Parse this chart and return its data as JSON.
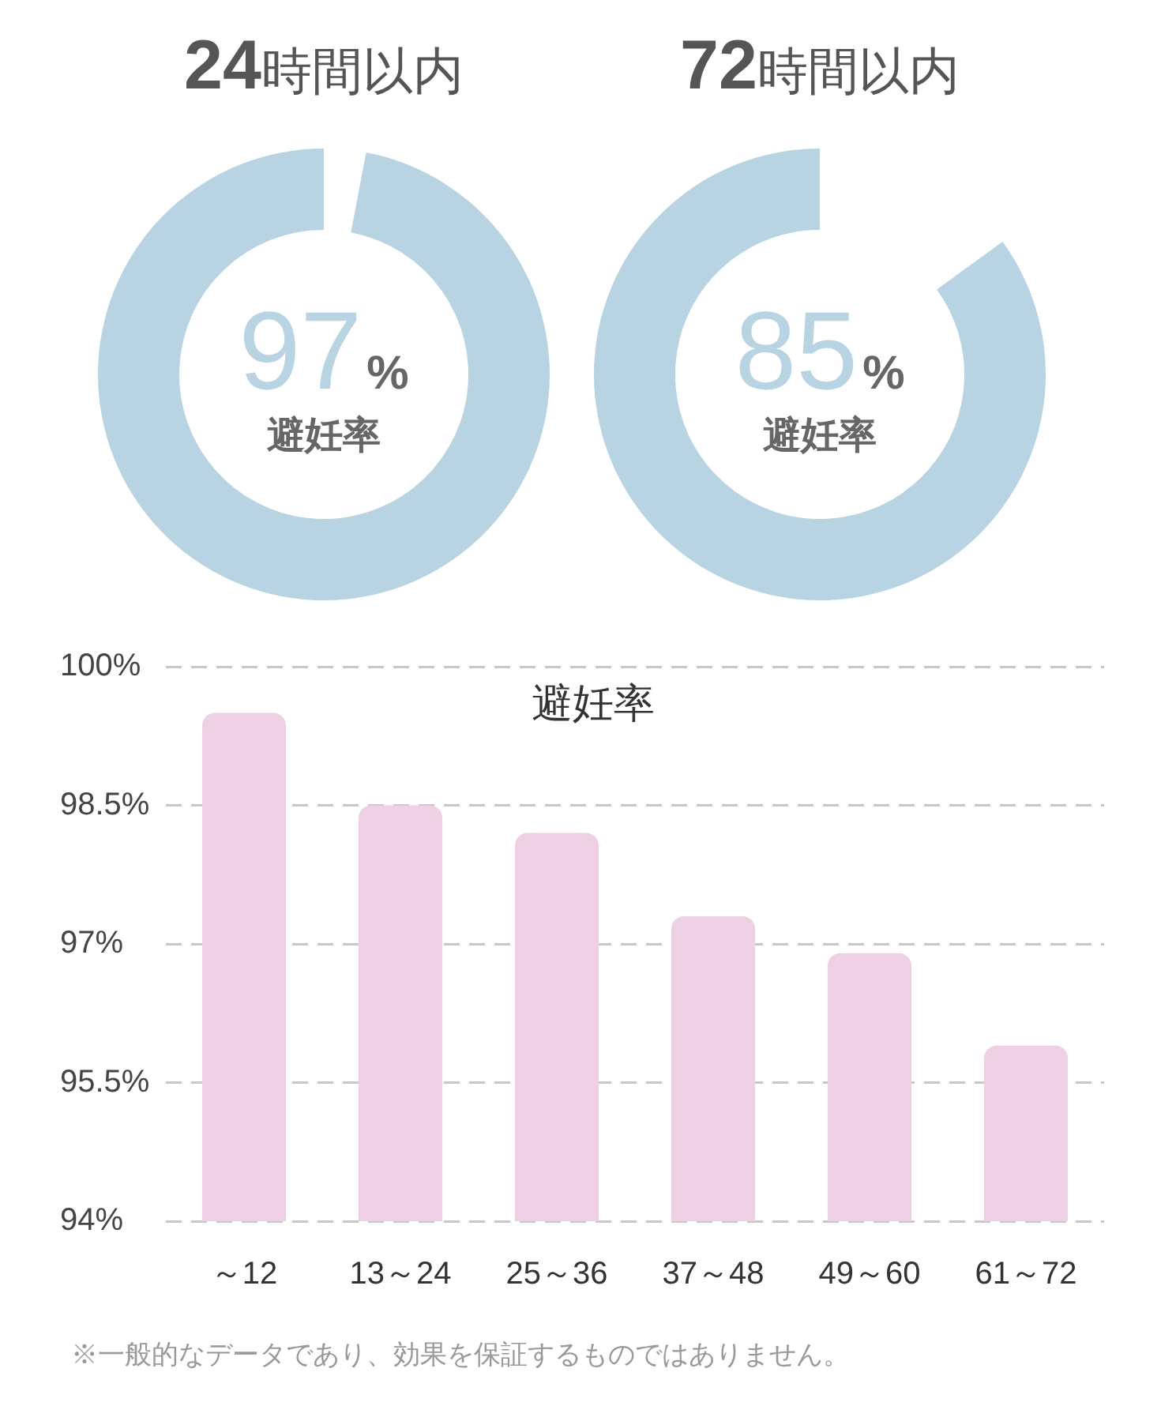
{
  "chart_data": [
    {
      "type": "pie",
      "title": "24時間以内",
      "categories": [
        null
      ],
      "values": [
        97
      ],
      "colors": [
        "#b8d4e2"
      ],
      "value_labels": [
        "97%"
      ],
      "annotations": [
        "避妊率"
      ]
    },
    {
      "type": "pie",
      "title": "72時間以内",
      "categories": [
        null
      ],
      "values": [
        85
      ],
      "colors": [
        "#b8d4e2"
      ],
      "value_labels": [
        "85%"
      ],
      "annotations": [
        "避妊率"
      ]
    },
    {
      "type": "bar",
      "title": "避妊率",
      "categories": [
        "～12",
        "13～24",
        "25～36",
        "37～48",
        "49～60",
        "61～72"
      ],
      "values": [
        99.5,
        98.5,
        98.2,
        97.3,
        96.9,
        95.9
      ],
      "color": "#edd0e3",
      "ylim": [
        94,
        100
      ],
      "yticks": [
        {
          "value": 94,
          "label": "94%"
        },
        {
          "value": 95.5,
          "label": "95.5%"
        },
        {
          "value": 97,
          "label": "97%"
        },
        {
          "value": 98.5,
          "label": "98.5%"
        },
        {
          "value": 100,
          "label": "100%"
        }
      ],
      "grid": "y",
      "annotations": [
        "※一般的なデータであり、効果を保証するものではありません。"
      ]
    }
  ]
}
